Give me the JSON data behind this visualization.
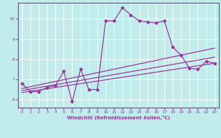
{
  "xlabel": "Windchill (Refroidissement éolien,°C)",
  "bg_color": "#c0ecec",
  "line_color": "#993399",
  "grid_color": "#ffffff",
  "xlim": [
    -0.5,
    23.5
  ],
  "ylim": [
    5.6,
    10.8
  ],
  "xticks": [
    0,
    1,
    2,
    3,
    4,
    5,
    6,
    7,
    8,
    9,
    10,
    11,
    12,
    13,
    14,
    15,
    16,
    17,
    18,
    19,
    20,
    21,
    22,
    23
  ],
  "yticks": [
    6,
    7,
    8,
    9,
    10
  ],
  "line1_x": [
    0,
    1,
    2,
    3,
    4,
    5,
    6,
    7,
    8,
    9,
    10,
    11,
    12,
    13,
    14,
    15,
    16,
    17,
    18,
    19,
    20,
    21,
    22,
    23
  ],
  "line1_y": [
    6.8,
    6.4,
    6.4,
    6.6,
    6.7,
    7.4,
    5.9,
    7.5,
    6.5,
    6.5,
    9.9,
    9.9,
    10.55,
    10.2,
    9.9,
    9.85,
    9.8,
    9.9,
    8.6,
    8.2,
    7.55,
    7.5,
    7.9,
    7.8
  ],
  "line2_x": [
    0,
    23
  ],
  "line2_y": [
    6.55,
    8.55
  ],
  "line3_x": [
    0,
    23
  ],
  "line3_y": [
    6.45,
    8.1
  ],
  "line4_x": [
    0,
    23
  ],
  "line4_y": [
    6.35,
    7.8
  ]
}
